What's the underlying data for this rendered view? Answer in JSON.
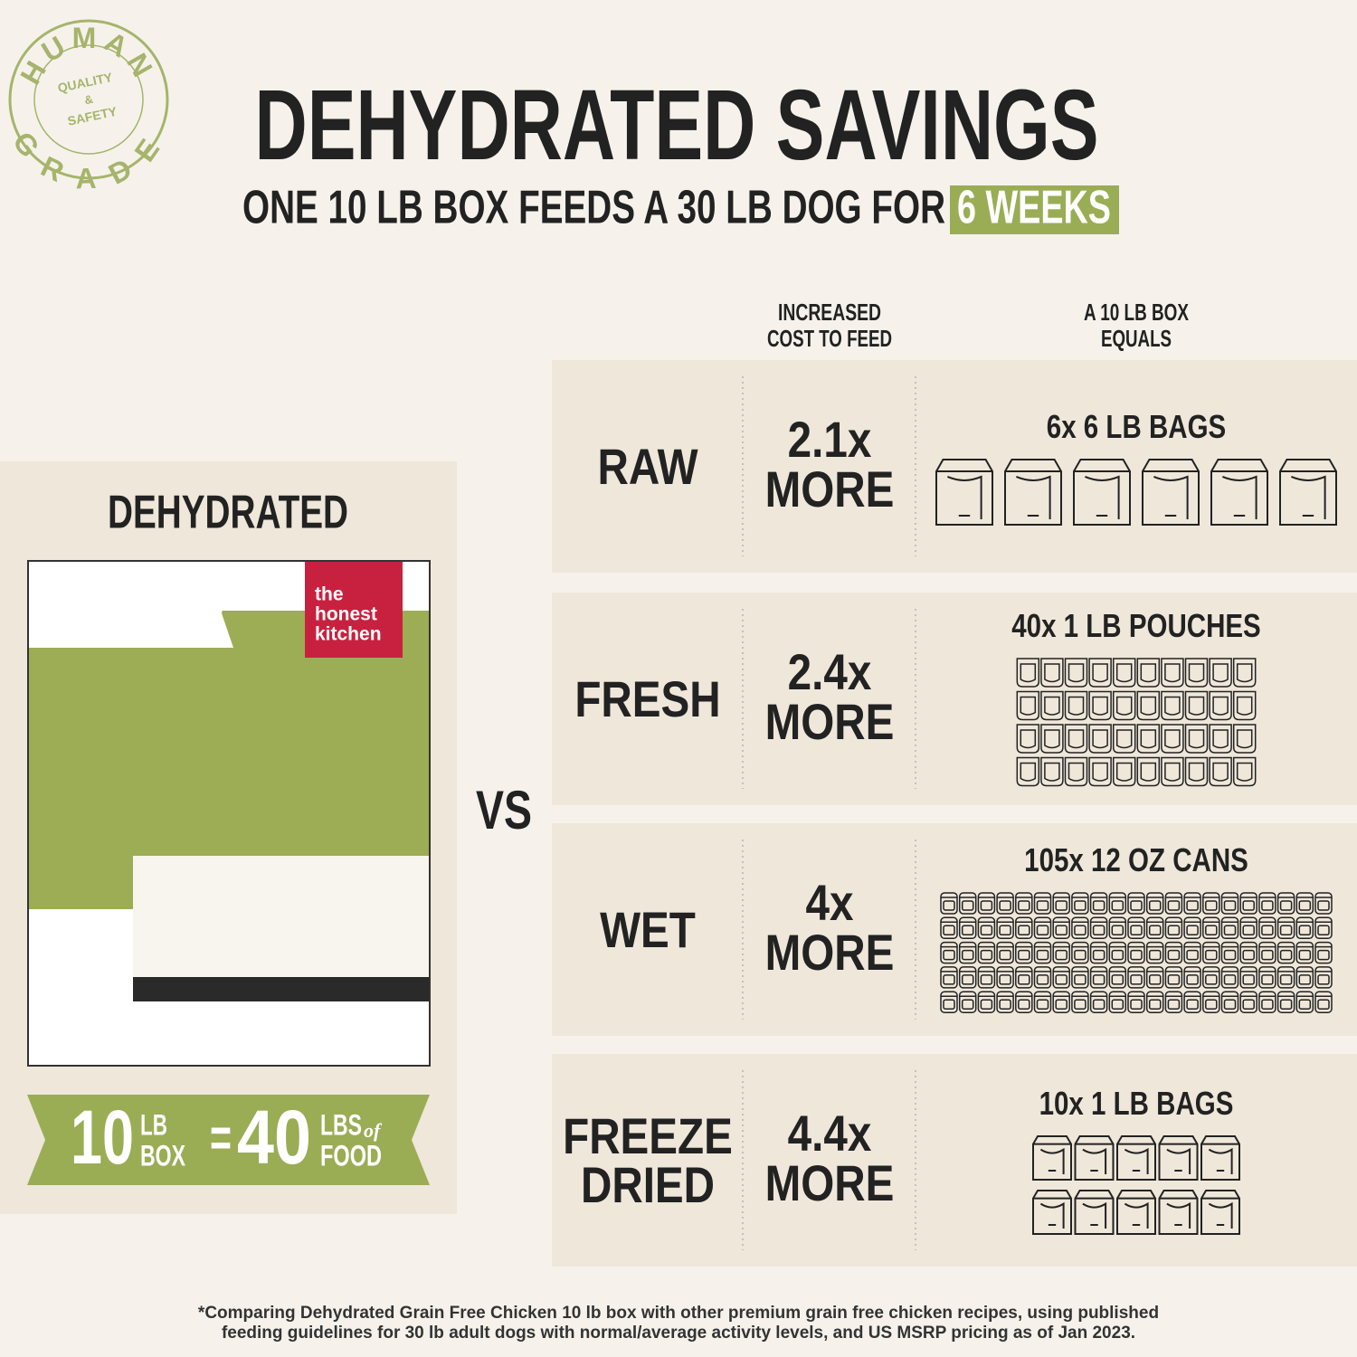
{
  "stamp": {
    "top": "HUMAN",
    "line1": "QUALITY",
    "line2": "&",
    "line3": "SAFETY",
    "bottom": "GRADE"
  },
  "header": {
    "title": "DEHYDRATED SAVINGS",
    "subtitle": "ONE 10 LB BOX FEEDS A 30 LB DOG FOR",
    "highlight": "6 WEEKS"
  },
  "columns": [
    [
      "INCREASED",
      "COST TO FEED"
    ],
    [
      "A 10 LB BOX",
      "EQUALS"
    ]
  ],
  "dehydrated": {
    "label": "DEHYDRATED",
    "brand": [
      "the",
      "honest",
      "kitchen"
    ],
    "badge": {
      "box_weight": "10",
      "box_unit": [
        "LB",
        "BOX"
      ],
      "equals": "=",
      "food_weight": "40",
      "food_unit": [
        "LBS",
        "of",
        "FOOD"
      ]
    }
  },
  "vs": "VS",
  "rows": [
    {
      "name": [
        "RAW"
      ],
      "cost": "2.1x",
      "more": "MORE",
      "count": 6,
      "unit": "x 6 LB BAGS"
    },
    {
      "name": [
        "FRESH"
      ],
      "cost": "2.4x",
      "more": "MORE",
      "count": 40,
      "unit": "x 1 LB POUCHES"
    },
    {
      "name": [
        "WET"
      ],
      "cost": "4x",
      "more": "MORE",
      "count": 105,
      "unit": "x 12 OZ CANS"
    },
    {
      "name": [
        "FREEZE",
        "DRIED"
      ],
      "cost": "4.4x",
      "more": "MORE",
      "count": 10,
      "unit": "x 1 LB BAGS"
    }
  ],
  "footnote": [
    "*Comparing Dehydrated Grain Free Chicken 10 lb box with other premium grain free chicken recipes, using published",
    "feeding guidelines for 30 lb adult dogs with normal/average activity levels, and US MSRP pricing as of Jan 2023."
  ]
}
